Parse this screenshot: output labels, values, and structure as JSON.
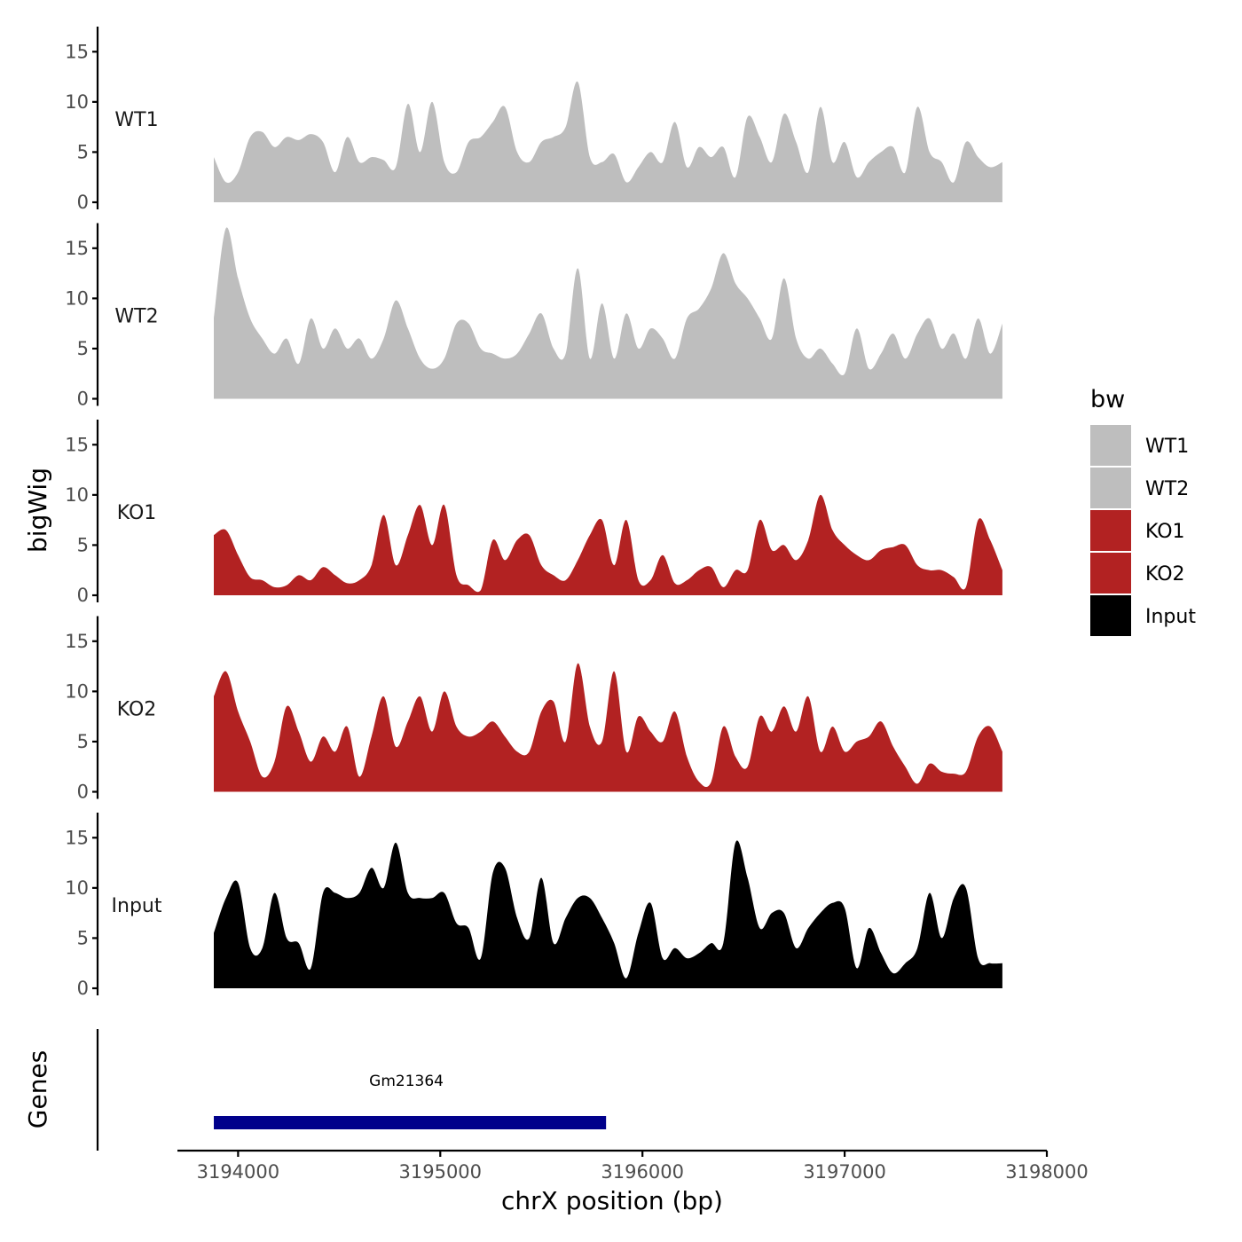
{
  "chart_data": {
    "type": "area",
    "xlabel": "chrX position (bp)",
    "ylabel": "bigWig",
    "genes_axis_label": "Genes",
    "xlim": [
      3193700,
      3198000
    ],
    "x_ticks": [
      3194000,
      3195000,
      3196000,
      3197000,
      3198000
    ],
    "x_tick_labels": [
      "3194000",
      "3195000",
      "3196000",
      "3197000",
      "3198000"
    ],
    "ylim": [
      0,
      17.5
    ],
    "y_ticks": [
      0,
      5,
      10,
      15
    ],
    "y_tick_labels": [
      "0",
      "5",
      "10",
      "15"
    ],
    "x": [
      3193880,
      3193940,
      3194000,
      3194060,
      3194120,
      3194180,
      3194240,
      3194300,
      3194360,
      3194420,
      3194480,
      3194540,
      3194600,
      3194660,
      3194720,
      3194780,
      3194840,
      3194900,
      3194960,
      3195020,
      3195080,
      3195140,
      3195200,
      3195260,
      3195320,
      3195380,
      3195440,
      3195500,
      3195560,
      3195620,
      3195680,
      3195740,
      3195800,
      3195860,
      3195920,
      3195980,
      3196040,
      3196100,
      3196160,
      3196220,
      3196280,
      3196340,
      3196400,
      3196460,
      3196520,
      3196580,
      3196640,
      3196700,
      3196760,
      3196820,
      3196880,
      3196940,
      3197000,
      3197060,
      3197120,
      3197180,
      3197240,
      3197300,
      3197360,
      3197420,
      3197480,
      3197540,
      3197600,
      3197660,
      3197720,
      3197780
    ],
    "series": [
      {
        "name": "WT1",
        "color": "#bebebe",
        "values": [
          4.5,
          2,
          3,
          6.5,
          7,
          5.5,
          6.5,
          6.2,
          6.8,
          6,
          3,
          6.5,
          4,
          4.5,
          4.2,
          3.5,
          9.8,
          5,
          10,
          4,
          3,
          6,
          6.5,
          8,
          9.5,
          5,
          4,
          6,
          6.5,
          7.5,
          12,
          4.5,
          4,
          4.8,
          2,
          3.5,
          5,
          4,
          8,
          3.5,
          5.5,
          4.5,
          5.5,
          2.5,
          8.5,
          6.5,
          4,
          8.8,
          6,
          3,
          9.5,
          4,
          6,
          2.5,
          4,
          5,
          5.5,
          3,
          9.5,
          5,
          4,
          2,
          6,
          4.5,
          3.5,
          4
        ]
      },
      {
        "name": "WT2",
        "color": "#bebebe",
        "values": [
          8,
          17,
          12,
          8,
          6,
          4.5,
          6,
          3.5,
          8,
          5,
          7,
          5,
          6,
          4,
          6,
          9.8,
          7,
          4,
          3,
          4,
          7.5,
          7.5,
          5,
          4.5,
          4,
          4.5,
          6.5,
          8.5,
          5,
          4.5,
          13,
          4,
          9.5,
          4,
          8.5,
          5,
          7,
          6,
          4,
          8,
          9,
          11,
          14.5,
          11.5,
          10,
          8,
          6,
          12,
          6,
          4,
          5,
          3.5,
          2.5,
          7,
          3,
          4.5,
          6.5,
          4,
          6.5,
          8,
          5,
          6.5,
          4,
          8,
          4.5,
          7.5
        ]
      },
      {
        "name": "KO1",
        "color": "#b22222",
        "values": [
          6,
          6.5,
          4,
          1.8,
          1.5,
          0.8,
          1,
          2,
          1.5,
          2.8,
          2,
          1.2,
          1.5,
          3,
          8,
          3,
          6,
          9,
          5,
          9,
          2,
          1,
          0.5,
          5.5,
          3.5,
          5.5,
          6,
          3,
          2,
          1.5,
          3.5,
          6,
          7.5,
          3,
          7.5,
          1.5,
          1.5,
          4,
          1.2,
          1.5,
          2.5,
          2.8,
          0.8,
          2.5,
          2.5,
          7.5,
          4.5,
          5,
          3.5,
          5.5,
          10,
          6.5,
          5,
          4,
          3.5,
          4.5,
          4.8,
          5,
          3,
          2.5,
          2.5,
          1.8,
          0.8,
          7.5,
          5.5,
          2.5
        ]
      },
      {
        "name": "KO2",
        "color": "#b22222",
        "values": [
          9.5,
          12,
          8,
          5,
          1.5,
          3,
          8.5,
          6,
          3,
          5.5,
          4,
          6.5,
          1.5,
          5.5,
          9.5,
          4.5,
          7,
          9.5,
          6,
          10,
          6.5,
          5.5,
          6,
          7,
          5.5,
          4,
          4,
          8,
          9,
          5,
          12.8,
          6.5,
          5,
          12,
          4,
          7.5,
          6,
          5,
          8,
          3.5,
          1,
          1,
          6.5,
          3.5,
          2.5,
          7.5,
          6,
          8.5,
          6,
          9.5,
          4,
          6.5,
          4,
          5,
          5.5,
          7,
          4.5,
          2.5,
          0.8,
          2.8,
          2,
          1.8,
          2,
          5.5,
          6.5,
          4
        ]
      },
      {
        "name": "Input",
        "color": "#000000",
        "values": [
          5.5,
          9,
          10.5,
          4,
          4,
          9.5,
          5,
          4.5,
          2,
          9.5,
          9.5,
          9,
          9.5,
          12,
          10,
          14.5,
          9.5,
          9,
          9,
          9.5,
          6.5,
          6,
          3,
          11.5,
          12,
          7,
          5,
          11,
          4.5,
          7,
          9,
          9,
          7,
          4.5,
          1,
          5.5,
          8.5,
          3,
          4,
          3,
          3.5,
          4.5,
          4.5,
          14.5,
          11,
          6,
          7.5,
          7.5,
          4,
          6,
          7.5,
          8.5,
          8,
          2,
          6,
          3.5,
          1.5,
          2.5,
          4,
          9.5,
          5,
          9,
          10,
          3,
          2.5,
          2.5
        ]
      }
    ],
    "legend": {
      "title": "bw",
      "position": "right",
      "items": [
        {
          "label": "WT1",
          "color": "#bebebe"
        },
        {
          "label": "WT2",
          "color": "#bebebe"
        },
        {
          "label": "KO1",
          "color": "#b22222"
        },
        {
          "label": "KO2",
          "color": "#b22222"
        },
        {
          "label": "Input",
          "color": "#000000"
        }
      ]
    },
    "genes": [
      {
        "name": "Gm21364",
        "start": 3193880,
        "end": 3195820,
        "color": "#00008b"
      }
    ]
  }
}
